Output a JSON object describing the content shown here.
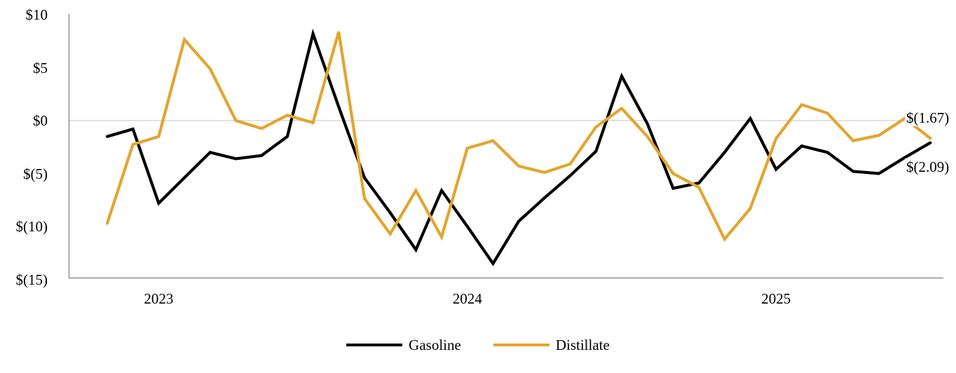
{
  "chart_data": {
    "type": "line",
    "title": "",
    "xlabel": "",
    "ylabel": "",
    "ylim": [
      -15,
      10
    ],
    "grid": "zero-gridline-only",
    "legend_position": "bottom",
    "x": [
      "2022-11",
      "2022-12",
      "2023-01",
      "2023-02",
      "2023-03",
      "2023-04",
      "2023-05",
      "2023-06",
      "2023-07",
      "2023-08",
      "2023-09",
      "2023-10",
      "2023-11",
      "2023-12",
      "2024-01",
      "2024-02",
      "2024-03",
      "2024-04",
      "2024-05",
      "2024-06",
      "2024-07",
      "2024-08",
      "2024-09",
      "2024-10",
      "2024-11",
      "2024-12",
      "2025-01",
      "2025-02",
      "2025-03",
      "2025-04",
      "2025-05",
      "2025-06",
      "2025-07"
    ],
    "series": [
      {
        "name": "Gasoline",
        "color": "#000000",
        "end_label": "$(2.09)",
        "values": [
          -1.5,
          -0.8,
          -7.8,
          -5.4,
          -3.0,
          -3.6,
          -3.3,
          -1.5,
          8.2,
          1.3,
          -5.4,
          -8.7,
          -12.2,
          -6.6,
          -10.0,
          -13.5,
          -9.5,
          -7.3,
          -5.2,
          -2.9,
          4.2,
          -0.3,
          -6.4,
          -5.9,
          -3.0,
          0.2,
          -4.6,
          -2.4,
          -3.0,
          -4.8,
          -5.0,
          -3.5,
          -2.09
        ]
      },
      {
        "name": "Distillate",
        "color": "#E2A52E",
        "end_label": "$(1.67)",
        "values": [
          -9.7,
          -2.25,
          -1.5,
          7.65,
          4.9,
          0.0,
          -0.75,
          0.5,
          -0.2,
          8.4,
          -7.35,
          -10.7,
          -6.6,
          -11.0,
          -2.6,
          -1.9,
          -4.3,
          -4.9,
          -4.1,
          -0.6,
          1.15,
          -1.5,
          -5.0,
          -6.3,
          -11.2,
          -8.3,
          -1.7,
          1.5,
          0.7,
          -1.9,
          -1.4,
          0.2,
          -1.67
        ]
      }
    ],
    "y_ticks": [
      {
        "label": "$10",
        "value": 10
      },
      {
        "label": "$5",
        "value": 5
      },
      {
        "label": "$0",
        "value": 0
      },
      {
        "label": "$(5)",
        "value": -5
      },
      {
        "label": "$(10)",
        "value": -10
      },
      {
        "label": "$(15)",
        "value": -15
      }
    ],
    "x_ticks": [
      {
        "label": "2023",
        "month_index": 2
      },
      {
        "label": "2024",
        "month_index": 14
      },
      {
        "label": "2025",
        "month_index": 26
      }
    ]
  },
  "colors": {
    "axis": "#A6A6A6",
    "gridline": "#D9D9D9",
    "text": "#000000",
    "background": "#FFFFFF"
  }
}
